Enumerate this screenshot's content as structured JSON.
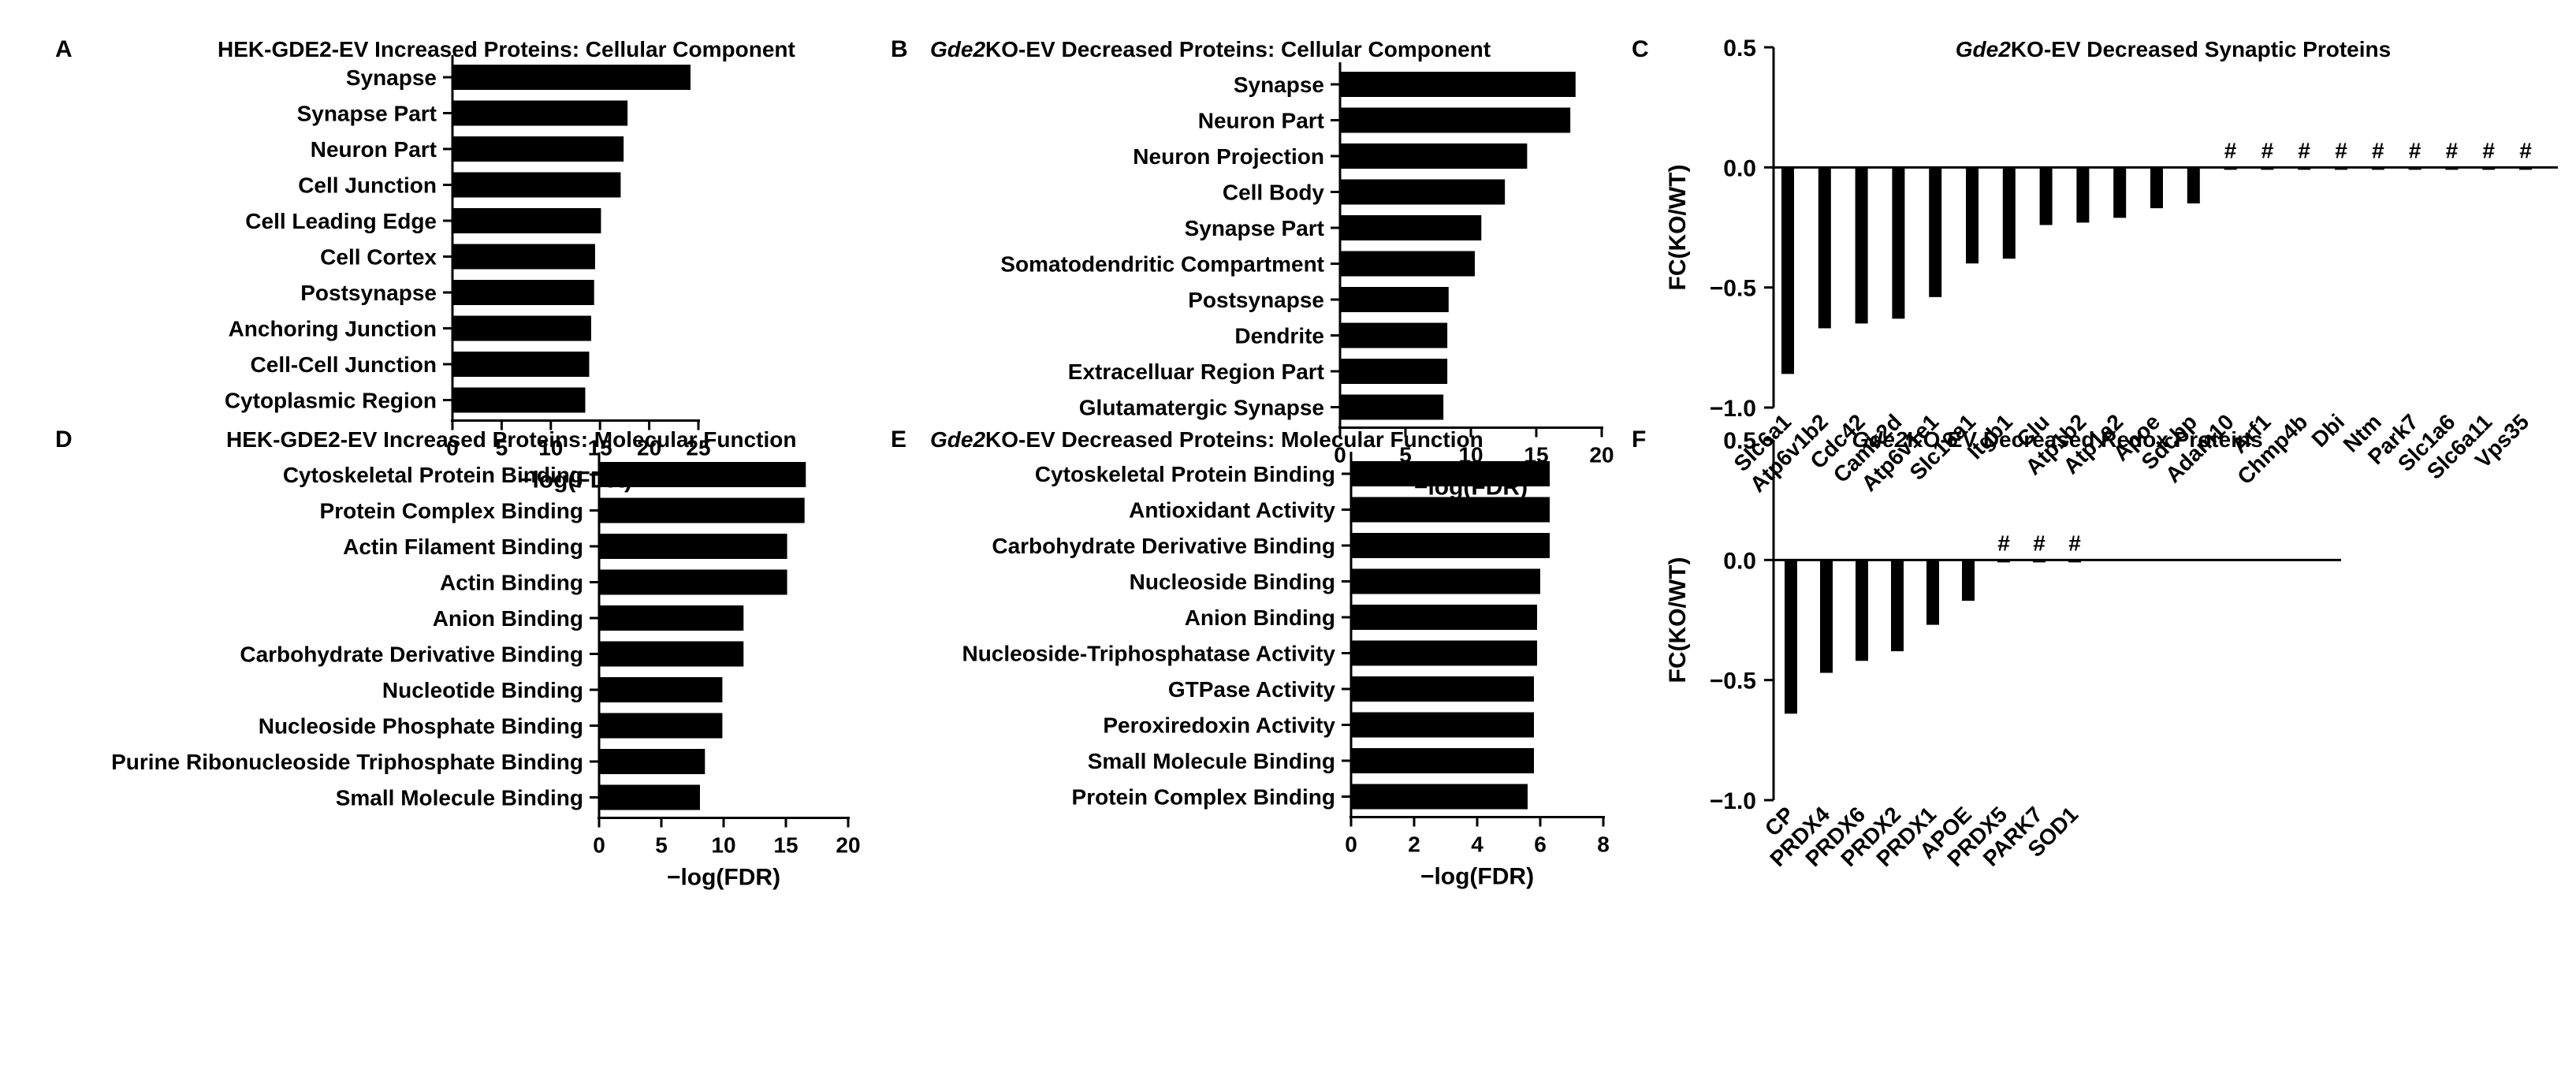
{
  "chart_data": [
    {
      "panel": "A",
      "type": "bar",
      "orientation": "horizontal",
      "title": "HEK-GDE2-EV Increased Proteins: Cellular Component",
      "categories": [
        "Synapse",
        "Synapse Part",
        "Neuron Part",
        "Cell Junction",
        "Cell Leading Edge",
        "Cell Cortex",
        "Postsynapse",
        "Anchoring Junction",
        "Cell-Cell Junction",
        "Cytoplasmic Region"
      ],
      "values": [
        24.2,
        17.8,
        17.4,
        17.1,
        15.1,
        14.5,
        14.4,
        14.1,
        13.9,
        13.5
      ],
      "xlabel": "−log(FDR)",
      "ylabel": "",
      "xlim": [
        0,
        25
      ],
      "ticks": [
        "0",
        "5",
        "10",
        "15",
        "20",
        "25"
      ]
    },
    {
      "panel": "B",
      "type": "bar",
      "orientation": "horizontal",
      "title": "Gde2KO-EV Decreased Proteins: Cellular Component",
      "title_italic": "Gde2",
      "title_rest": "KO-EV Decreased Proteins: Cellular Component",
      "categories": [
        "Synapse",
        "Neuron Part",
        "Neuron Projection",
        "Cell Body",
        "Synapse Part",
        "Somatodendritic Compartment",
        "Postsynapse",
        "Dendrite",
        "Extracelluar Region Part",
        "Glutamatergic Synapse"
      ],
      "values": [
        18.0,
        17.6,
        14.3,
        12.6,
        10.8,
        10.3,
        8.3,
        8.2,
        8.2,
        7.9
      ],
      "xlabel": "−log(FDR)",
      "ylabel": "",
      "xlim": [
        0,
        20
      ],
      "ticks": [
        "0",
        "5",
        "10",
        "15",
        "20"
      ]
    },
    {
      "panel": "C",
      "type": "bar",
      "orientation": "vertical",
      "title": "Gde2KO-EV Decreased Synaptic Proteins",
      "title_italic": "Gde2",
      "title_rest": "KO-EV Decreased Synaptic Proteins",
      "categories": [
        "Slc6a1",
        "Atp6v1b2",
        "Cdc42",
        "Camk2d",
        "Atp6v1e1",
        "Slc16a1",
        "Itgb1",
        "Clu",
        "Atp1b2",
        "Atp1a2",
        "Apoe",
        "Sdcbp",
        "Adam10",
        "Arf1",
        "Chmp4b",
        "Dbi",
        "Ntm",
        "Park7",
        "Slc1a6",
        "Slc6a11",
        "Vps35"
      ],
      "values": [
        -0.86,
        -0.67,
        -0.65,
        -0.63,
        -0.54,
        -0.4,
        -0.38,
        -0.24,
        -0.23,
        -0.21,
        -0.17,
        -0.15,
        -0.01,
        -0.01,
        -0.01,
        -0.01,
        -0.01,
        -0.01,
        -0.01,
        -0.01,
        -0.01
      ],
      "marks": [
        "",
        "",
        "",
        "",
        "",
        "",
        "",
        "",
        "",
        "",
        "",
        "",
        "#",
        "#",
        "#",
        "#",
        "#",
        "#",
        "#",
        "#",
        "#"
      ],
      "xlabel": "",
      "ylabel": "FC(KO/WT)",
      "ylim": [
        -1.0,
        0.5
      ],
      "ticks": [
        "0.5",
        "0.0",
        "−0.5",
        "−1.0"
      ]
    },
    {
      "panel": "D",
      "type": "bar",
      "orientation": "horizontal",
      "title": "HEK-GDE2-EV Increased Proteins: Molecular Function",
      "categories": [
        "Cytoskeletal Protein Binding",
        "Protein Complex Binding",
        "Actin Filament Binding",
        "Actin Binding",
        "Anion Binding",
        "Carbohydrate Derivative Binding",
        "Nucleotide Binding",
        "Nucleoside Phosphate Binding",
        "Purine Ribonucleoside Triphosphate Binding",
        "Small Molecule Binding"
      ],
      "values": [
        16.6,
        16.5,
        15.1,
        15.1,
        11.6,
        11.6,
        9.9,
        9.9,
        8.5,
        8.1
      ],
      "xlabel": "−log(FDR)",
      "ylabel": "",
      "xlim": [
        0,
        20
      ],
      "ticks": [
        "0",
        "5",
        "10",
        "15",
        "20"
      ]
    },
    {
      "panel": "E",
      "type": "bar",
      "orientation": "horizontal",
      "title": "Gde2KO-EV Decreased Proteins: Molecular Function",
      "title_italic": "Gde2",
      "title_rest": "KO-EV Decreased Proteins: Molecular Function",
      "categories": [
        "Cytoskeletal Protein Binding",
        "Antioxidant Activity",
        "Carbohydrate Derivative Binding",
        "Nucleoside Binding",
        "Anion Binding",
        "Nucleoside-Triphosphatase Activity",
        "GTPase Activity",
        "Peroxiredoxin Activity",
        "Small Molecule Binding",
        "Protein Complex Binding"
      ],
      "values": [
        6.3,
        6.3,
        6.3,
        6.0,
        5.9,
        5.9,
        5.8,
        5.8,
        5.8,
        5.6
      ],
      "xlabel": "−log(FDR)",
      "ylabel": "",
      "xlim": [
        0,
        8
      ],
      "ticks": [
        "0",
        "2",
        "4",
        "6",
        "8"
      ]
    },
    {
      "panel": "F",
      "type": "bar",
      "orientation": "vertical",
      "title": "Gde2KO-EV Decreased Redox Proteins",
      "title_italic": "Gde2",
      "title_rest": "KO-EV Decreased Redox Proteins",
      "categories": [
        "CP",
        "PRDX4",
        "PRDX6",
        "PRDX2",
        "PRDX1",
        "APOE",
        "PRDX5",
        "PARK7",
        "SOD1"
      ],
      "values": [
        -0.64,
        -0.47,
        -0.42,
        -0.38,
        -0.27,
        -0.17,
        -0.01,
        -0.01,
        -0.01
      ],
      "marks": [
        "",
        "",
        "",
        "",
        "",
        "",
        "#",
        "#",
        "#"
      ],
      "xlabel": "",
      "ylabel": "FC(KO/WT)",
      "ylim": [
        -1.0,
        0.5
      ],
      "ticks": [
        "0.5",
        "0.0",
        "−0.5",
        "−1.0"
      ]
    }
  ]
}
